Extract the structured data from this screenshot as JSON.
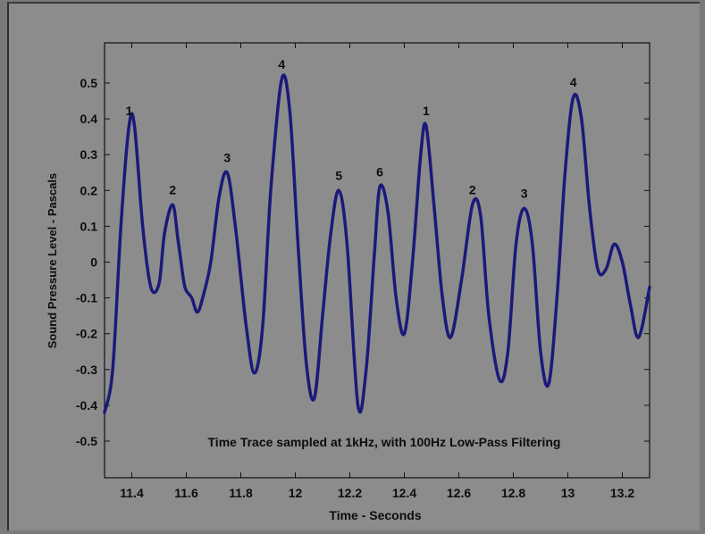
{
  "chart_data": {
    "type": "line",
    "title": "",
    "annotation": "Time Trace sampled at 1kHz, with 100Hz Low-Pass Filtering",
    "xlabel": "Time - Seconds",
    "ylabel": "Sound Pressure Level - Pascals",
    "xlim": [
      11.3,
      13.3
    ],
    "ylim": [
      -0.6,
      0.6
    ],
    "x_ticks": [
      "11.4",
      "11.6",
      "11.8",
      "12",
      "12.2",
      "12.4",
      "12.6",
      "12.8",
      "13",
      "13.2"
    ],
    "y_ticks": [
      "0.5",
      "0.4",
      "0.3",
      "0.2",
      "0.1",
      "0",
      "-0.1",
      "-0.2",
      "-0.3",
      "-0.4",
      "-0.5"
    ],
    "grid": false,
    "series": [
      {
        "color": "#1a1a7a",
        "x": [
          11.3,
          11.33,
          11.36,
          11.39,
          11.41,
          11.44,
          11.47,
          11.5,
          11.52,
          11.55,
          11.57,
          11.59,
          11.6,
          11.62,
          11.64,
          11.66,
          11.69,
          11.72,
          11.75,
          11.78,
          11.82,
          11.85,
          11.88,
          11.91,
          11.95,
          11.98,
          12.01,
          12.04,
          12.07,
          12.1,
          12.13,
          12.16,
          12.19,
          12.23,
          12.26,
          12.29,
          12.31,
          12.34,
          12.37,
          12.4,
          12.43,
          12.46,
          12.48,
          12.51,
          12.54,
          12.57,
          12.61,
          12.65,
          12.68,
          12.71,
          12.75,
          12.78,
          12.81,
          12.84,
          12.87,
          12.9,
          12.93,
          12.96,
          12.99,
          13.02,
          13.05,
          13.08,
          13.11,
          13.14,
          13.17,
          13.2,
          13.23,
          13.26,
          13.3
        ],
        "y": [
          -0.42,
          -0.3,
          0.1,
          0.38,
          0.38,
          0.1,
          -0.07,
          -0.06,
          0.08,
          0.16,
          0.06,
          -0.05,
          -0.08,
          -0.1,
          -0.14,
          -0.1,
          0.0,
          0.18,
          0.25,
          0.1,
          -0.18,
          -0.31,
          -0.18,
          0.2,
          0.51,
          0.42,
          0.05,
          -0.28,
          -0.38,
          -0.15,
          0.08,
          0.2,
          0.05,
          -0.4,
          -0.3,
          0.02,
          0.21,
          0.14,
          -0.1,
          -0.2,
          0.0,
          0.3,
          0.38,
          0.15,
          -0.1,
          -0.21,
          -0.05,
          0.16,
          0.13,
          -0.15,
          -0.33,
          -0.25,
          0.05,
          0.15,
          0.05,
          -0.25,
          -0.34,
          -0.1,
          0.25,
          0.46,
          0.4,
          0.15,
          -0.02,
          -0.02,
          0.05,
          0.0,
          -0.12,
          -0.21,
          -0.07
        ]
      }
    ],
    "peak_labels": [
      {
        "text": "1",
        "x": 11.39,
        "y": 0.38
      },
      {
        "text": "2",
        "x": 11.55,
        "y": 0.16
      },
      {
        "text": "3",
        "x": 11.75,
        "y": 0.25
      },
      {
        "text": "4",
        "x": 11.95,
        "y": 0.51
      },
      {
        "text": "5",
        "x": 12.16,
        "y": 0.2
      },
      {
        "text": "6",
        "x": 12.31,
        "y": 0.21
      },
      {
        "text": "1",
        "x": 12.48,
        "y": 0.38
      },
      {
        "text": "2",
        "x": 12.65,
        "y": 0.16
      },
      {
        "text": "3",
        "x": 12.84,
        "y": 0.15
      },
      {
        "text": "4",
        "x": 13.02,
        "y": 0.46
      }
    ]
  }
}
